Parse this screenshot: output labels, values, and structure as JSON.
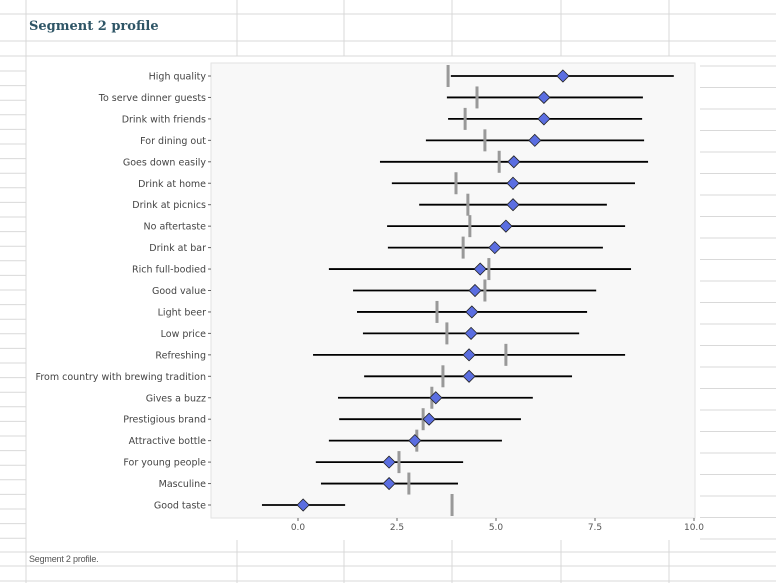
{
  "sheet": {
    "title": "Segment 2 profile",
    "caption": "Segment 2 profile."
  },
  "colors": {
    "diamond": "#5b6ee1",
    "mean_line": "#999999",
    "interval": "#000000",
    "title": "#2e5566",
    "panel": "#f8f8f8"
  },
  "chart_data": {
    "type": "dot-interval",
    "title": "",
    "xlabel": "",
    "ylabel": "",
    "xlim": [
      -2.2,
      10.0
    ],
    "xticks": [
      0.0,
      2.5,
      5.0,
      7.5,
      10.0
    ],
    "xtick_labels": [
      "0.0",
      "2.5",
      "5.0",
      "7.5",
      "10.0"
    ],
    "grid": false,
    "legend": "none",
    "categories": [
      "High quality",
      "To serve dinner guests",
      "Drink with friends",
      "For dining out",
      "Goes down easily",
      "Drink at home",
      "Drink at picnics",
      "No aftertaste",
      "Drink at bar",
      "Rich full-bodied",
      "Good value",
      "Light beer",
      "Low price",
      "Refreshing",
      "From country with brewing tradition",
      "Gives a buzz",
      "Prestigious brand",
      "Attractive bottle",
      "For young people",
      "Masculine",
      "Good taste"
    ],
    "segment_value": [
      6.69,
      6.21,
      6.21,
      5.98,
      5.45,
      5.43,
      5.43,
      5.25,
      4.97,
      4.6,
      4.47,
      4.39,
      4.37,
      4.32,
      4.32,
      3.48,
      3.31,
      2.95,
      2.3,
      2.3,
      0.13
    ],
    "interval_low": [
      3.86,
      3.76,
      3.79,
      3.23,
      2.07,
      2.37,
      3.06,
      2.25,
      2.27,
      0.78,
      1.39,
      1.49,
      1.64,
      0.38,
      1.67,
      1.01,
      1.04,
      0.78,
      0.45,
      0.58,
      -0.91
    ],
    "interval_high": [
      9.49,
      8.71,
      8.69,
      8.74,
      8.84,
      8.51,
      7.8,
      8.26,
      7.7,
      8.41,
      7.53,
      7.3,
      7.1,
      8.26,
      6.92,
      5.93,
      5.63,
      5.15,
      4.17,
      4.04,
      1.19
    ],
    "overall_value": [
      3.79,
      4.52,
      4.22,
      4.72,
      5.08,
      3.99,
      4.29,
      4.34,
      4.17,
      4.82,
      4.72,
      3.51,
      3.76,
      5.25,
      3.66,
      3.38,
      3.16,
      3.0,
      2.55,
      2.8,
      3.89
    ]
  }
}
